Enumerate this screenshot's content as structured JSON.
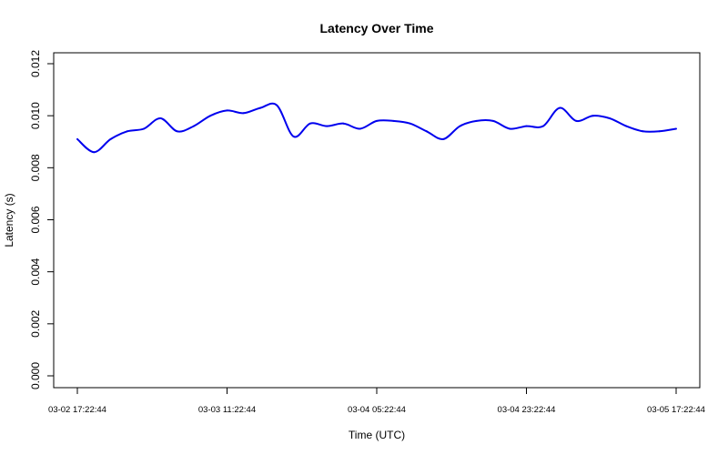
{
  "chart_data": {
    "type": "line",
    "title": "Latency Over Time",
    "xlabel": "Time (UTC)",
    "ylabel": "Latency (s)",
    "xlim": [
      "03-02 17:22:44",
      "03-05 17:22:44"
    ],
    "ylim": [
      0.0,
      0.012
    ],
    "x_ticks": [
      "03-02 17:22:44",
      "03-03 11:22:44",
      "03-04 05:22:44",
      "03-04 23:22:44",
      "03-05 17:22:44"
    ],
    "y_ticks": [
      "0.000",
      "0.002",
      "0.004",
      "0.006",
      "0.008",
      "0.010",
      "0.012"
    ],
    "grid": false,
    "legend": "none",
    "series": [
      {
        "color": "#0000ee",
        "x": [
          "03-02 17:22:44",
          "03-02 19:22:44",
          "03-02 21:22:44",
          "03-02 23:22:44",
          "03-03 01:22:44",
          "03-03 03:22:44",
          "03-03 05:22:44",
          "03-03 07:22:44",
          "03-03 09:22:44",
          "03-03 11:22:44",
          "03-03 13:22:44",
          "03-03 15:22:44",
          "03-03 17:22:44",
          "03-03 19:22:44",
          "03-03 21:22:44",
          "03-03 23:22:44",
          "03-04 01:22:44",
          "03-04 03:22:44",
          "03-04 05:22:44",
          "03-04 07:22:44",
          "03-04 09:22:44",
          "03-04 11:22:44",
          "03-04 13:22:44",
          "03-04 15:22:44",
          "03-04 17:22:44",
          "03-04 19:22:44",
          "03-04 21:22:44",
          "03-04 23:22:44",
          "03-05 01:22:44",
          "03-05 03:22:44",
          "03-05 05:22:44",
          "03-05 07:22:44",
          "03-05 09:22:44",
          "03-05 11:22:44",
          "03-05 13:22:44",
          "03-05 15:22:44",
          "03-05 17:22:44"
        ],
        "y": [
          0.0091,
          0.0086,
          0.0091,
          0.0094,
          0.0095,
          0.0099,
          0.0094,
          0.0096,
          0.01,
          0.0102,
          0.0101,
          0.0103,
          0.0104,
          0.0092,
          0.0097,
          0.0096,
          0.0097,
          0.0095,
          0.0098,
          0.0098,
          0.0097,
          0.0094,
          0.0091,
          0.0096,
          0.0098,
          0.0098,
          0.0095,
          0.0096,
          0.0096,
          0.0103,
          0.0098,
          0.01,
          0.0099,
          0.0096,
          0.0094,
          0.0094,
          0.0095
        ]
      }
    ]
  }
}
